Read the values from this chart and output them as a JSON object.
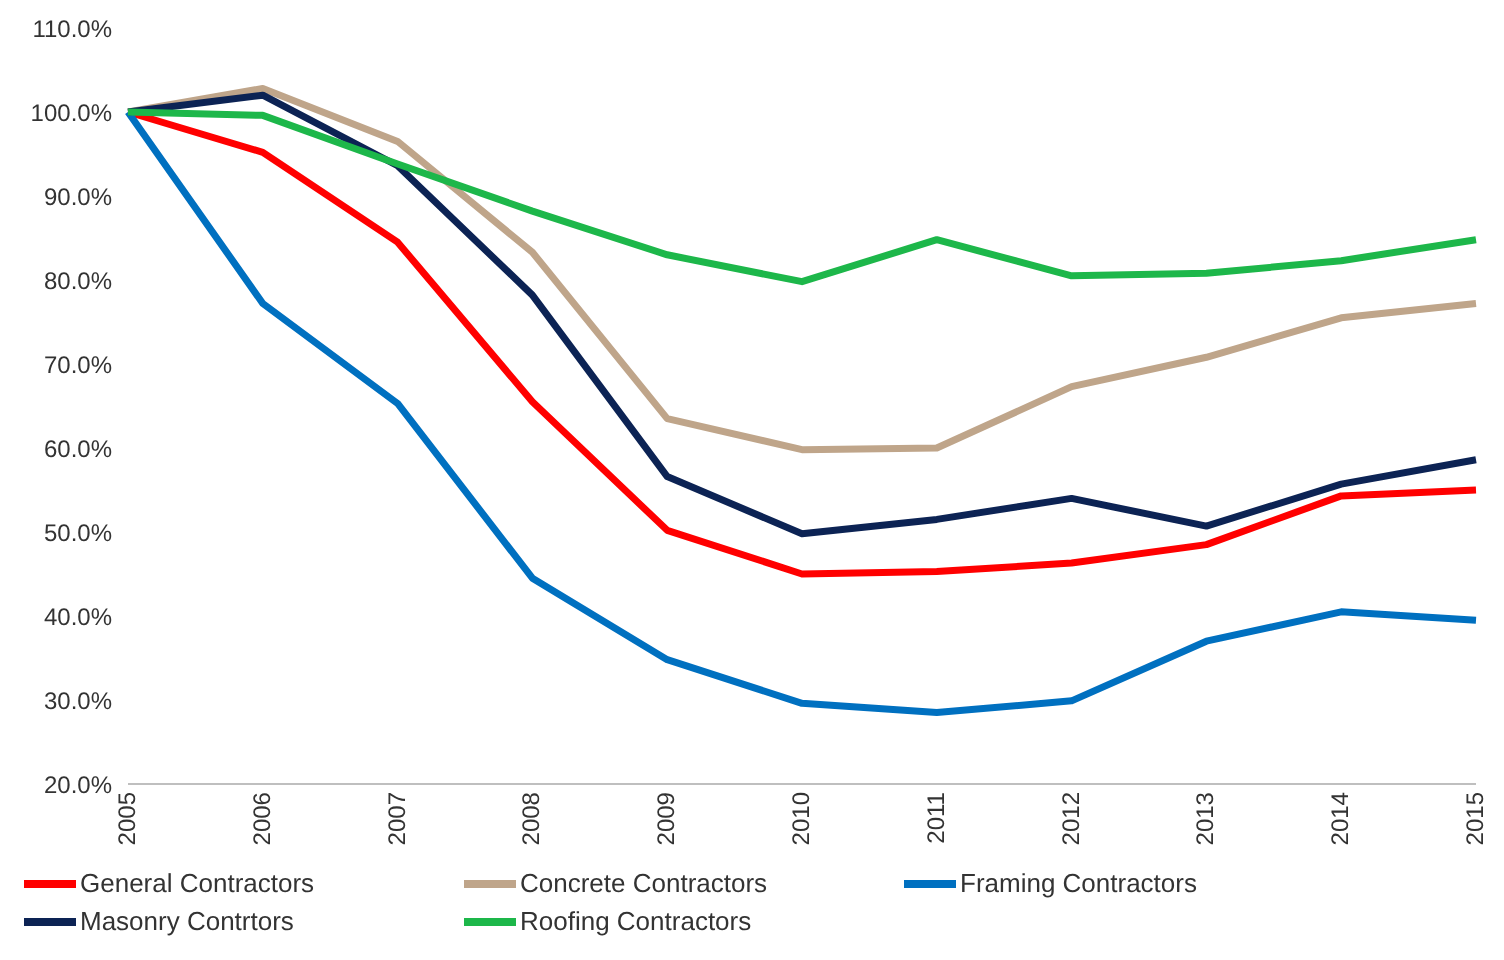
{
  "chart_data": {
    "type": "line",
    "categories": [
      "2005",
      "2006",
      "2007",
      "2008",
      "2009",
      "2010",
      "2011",
      "2012",
      "2013",
      "2014",
      "2015"
    ],
    "series": [
      {
        "name": "General Contractors",
        "color": "#ff0000",
        "values": [
          100,
          95.2,
          84.5,
          65.5,
          50.2,
          45,
          45.3,
          46.3,
          48.5,
          54.3,
          55
        ]
      },
      {
        "name": "Concrete Contractors",
        "color": "#bfa58a",
        "values": [
          100,
          102.8,
          96.5,
          83.3,
          63.5,
          59.8,
          60,
          67.3,
          70.8,
          75.5,
          77.2
        ]
      },
      {
        "name": "Framing Contractors",
        "color": "#0070c0",
        "values": [
          100,
          77.2,
          65.3,
          44.5,
          34.8,
          29.6,
          28.5,
          29.9,
          37,
          40.5,
          39.5
        ]
      },
      {
        "name": "Masonry Contrtors",
        "color": "#0c2354",
        "values": [
          100,
          102,
          93.6,
          78.2,
          56.6,
          49.8,
          51.5,
          54,
          50.7,
          55.7,
          58.6
        ]
      },
      {
        "name": "Roofing Contractors",
        "color": "#1db74a",
        "values": [
          100,
          99.6,
          93.8,
          88.2,
          83,
          79.8,
          84.8,
          80.5,
          80.8,
          82.3,
          84.8
        ]
      }
    ],
    "ylim": [
      20,
      110
    ],
    "yticks": [
      {
        "value": 20,
        "label": "20.0%"
      },
      {
        "value": 30,
        "label": "30.0%"
      },
      {
        "value": 40,
        "label": "40.0%"
      },
      {
        "value": 50,
        "label": "50.0%"
      },
      {
        "value": 60,
        "label": "60.0%"
      },
      {
        "value": 70,
        "label": "70.0%"
      },
      {
        "value": 80,
        "label": "80.0%"
      },
      {
        "value": 90,
        "label": "90.0%"
      },
      {
        "value": 100,
        "label": "100.0%"
      },
      {
        "value": 110,
        "label": "110.0%"
      }
    ],
    "grid": false,
    "legend": "bottom",
    "marker": "none",
    "line_style": "solid"
  }
}
